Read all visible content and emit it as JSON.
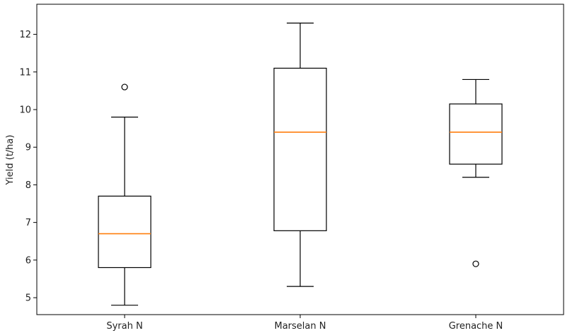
{
  "chart_data": {
    "type": "box",
    "title": "",
    "xlabel": "",
    "ylabel": "Yield (t/ha)",
    "ylim": [
      4.55,
      12.8
    ],
    "yticks": [
      5,
      6,
      7,
      8,
      9,
      10,
      11,
      12
    ],
    "grid": false,
    "categories": [
      "Syrah N",
      "Marselan N",
      "Grenache N"
    ],
    "boxes": [
      {
        "whisker_low": 4.8,
        "q1": 5.8,
        "median": 6.7,
        "q3": 7.7,
        "whisker_high": 9.8,
        "outliers": [
          10.6
        ]
      },
      {
        "whisker_low": 5.3,
        "q1": 6.78,
        "median": 9.4,
        "q3": 11.1,
        "whisker_high": 12.3,
        "outliers": []
      },
      {
        "whisker_low": 8.2,
        "q1": 8.55,
        "median": 9.4,
        "q3": 10.15,
        "whisker_high": 10.8,
        "outliers": [
          5.9
        ]
      }
    ],
    "colors": {
      "box": "#000000",
      "median": "#ff7f0e",
      "axis": "#000000"
    }
  }
}
